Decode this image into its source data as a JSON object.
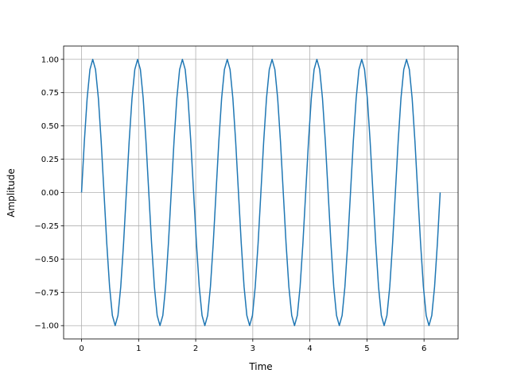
{
  "chart_data": {
    "type": "line",
    "x_label": "Time",
    "y_label": "Amplitude",
    "xlim": [
      -0.314,
      6.597
    ],
    "ylim": [
      -1.1,
      1.1
    ],
    "xticks": [
      0,
      1,
      2,
      3,
      4,
      5,
      6
    ],
    "yticks": [
      {
        "value": -1,
        "label": "−1.00"
      },
      {
        "value": -0.75,
        "label": "−0.75"
      },
      {
        "value": -0.5,
        "label": "−0.50"
      },
      {
        "value": -0.25,
        "label": "−0.25"
      },
      {
        "value": 0,
        "label": "0.00"
      },
      {
        "value": 0.25,
        "label": "0.25"
      },
      {
        "value": 0.5,
        "label": "0.50"
      },
      {
        "value": 0.75,
        "label": "0.75"
      },
      {
        "value": 1,
        "label": "1.00"
      }
    ],
    "grid": true,
    "x": [
      0,
      0.049,
      0.098,
      0.147,
      0.196,
      0.245,
      0.295,
      0.344,
      0.393,
      0.442,
      0.491,
      0.54,
      0.589,
      0.638,
      0.687,
      0.736,
      0.785,
      0.834,
      0.884,
      0.933,
      0.982,
      1.031,
      1.08,
      1.129,
      1.178,
      1.227,
      1.276,
      1.325,
      1.374,
      1.424,
      1.473,
      1.522,
      1.571,
      1.62,
      1.669,
      1.718,
      1.767,
      1.816,
      1.865,
      1.914,
      1.963,
      2.013,
      2.062,
      2.111,
      2.16,
      2.209,
      2.258,
      2.307,
      2.356,
      2.405,
      2.454,
      2.503,
      2.553,
      2.602,
      2.651,
      2.7,
      2.749,
      2.798,
      2.847,
      2.896,
      2.945,
      2.994,
      3.043,
      3.093,
      3.142,
      3.191,
      3.24,
      3.289,
      3.338,
      3.387,
      3.436,
      3.485,
      3.534,
      3.583,
      3.632,
      3.682,
      3.731,
      3.78,
      3.829,
      3.878,
      3.927,
      3.976,
      4.025,
      4.074,
      4.123,
      4.172,
      4.221,
      4.271,
      4.32,
      4.369,
      4.418,
      4.467,
      4.516,
      4.565,
      4.614,
      4.663,
      4.712,
      4.761,
      4.811,
      4.86,
      4.909,
      4.958,
      5.007,
      5.056,
      5.105,
      5.154,
      5.203,
      5.252,
      5.301,
      5.35,
      5.4,
      5.449,
      5.498,
      5.547,
      5.596,
      5.645,
      5.694,
      5.743,
      5.792,
      5.841,
      5.89,
      5.94,
      5.989,
      6.038,
      6.087,
      6.136,
      6.185,
      6.234,
      6.283
    ],
    "series": [
      {
        "color": "#1f77b4",
        "values": [
          0,
          0.383,
          0.707,
          0.924,
          1,
          0.924,
          0.707,
          0.383,
          0,
          -0.383,
          -0.707,
          -0.924,
          -1,
          -0.924,
          -0.707,
          -0.383,
          0,
          0.383,
          0.707,
          0.924,
          1,
          0.924,
          0.707,
          0.383,
          0,
          -0.383,
          -0.707,
          -0.924,
          -1,
          -0.924,
          -0.707,
          -0.383,
          0,
          0.383,
          0.707,
          0.924,
          1,
          0.924,
          0.707,
          0.383,
          0,
          -0.383,
          -0.707,
          -0.924,
          -1,
          -0.924,
          -0.707,
          -0.383,
          0,
          0.383,
          0.707,
          0.924,
          1,
          0.924,
          0.707,
          0.383,
          0,
          -0.383,
          -0.707,
          -0.924,
          -1,
          -0.924,
          -0.707,
          -0.383,
          0,
          0.383,
          0.707,
          0.924,
          1,
          0.924,
          0.707,
          0.383,
          0,
          -0.383,
          -0.707,
          -0.924,
          -1,
          -0.924,
          -0.707,
          -0.383,
          0,
          0.383,
          0.707,
          0.924,
          1,
          0.924,
          0.707,
          0.383,
          0,
          -0.383,
          -0.707,
          -0.924,
          -1,
          -0.924,
          -0.707,
          -0.383,
          0,
          0.383,
          0.707,
          0.924,
          1,
          0.924,
          0.707,
          0.383,
          0,
          -0.383,
          -0.707,
          -0.924,
          -1,
          -0.924,
          -0.707,
          -0.383,
          0,
          0.383,
          0.707,
          0.924,
          1,
          0.924,
          0.707,
          0.383,
          0,
          -0.383,
          -0.707,
          -0.924,
          -1,
          -0.924,
          -0.707,
          -0.383,
          0
        ]
      }
    ]
  }
}
